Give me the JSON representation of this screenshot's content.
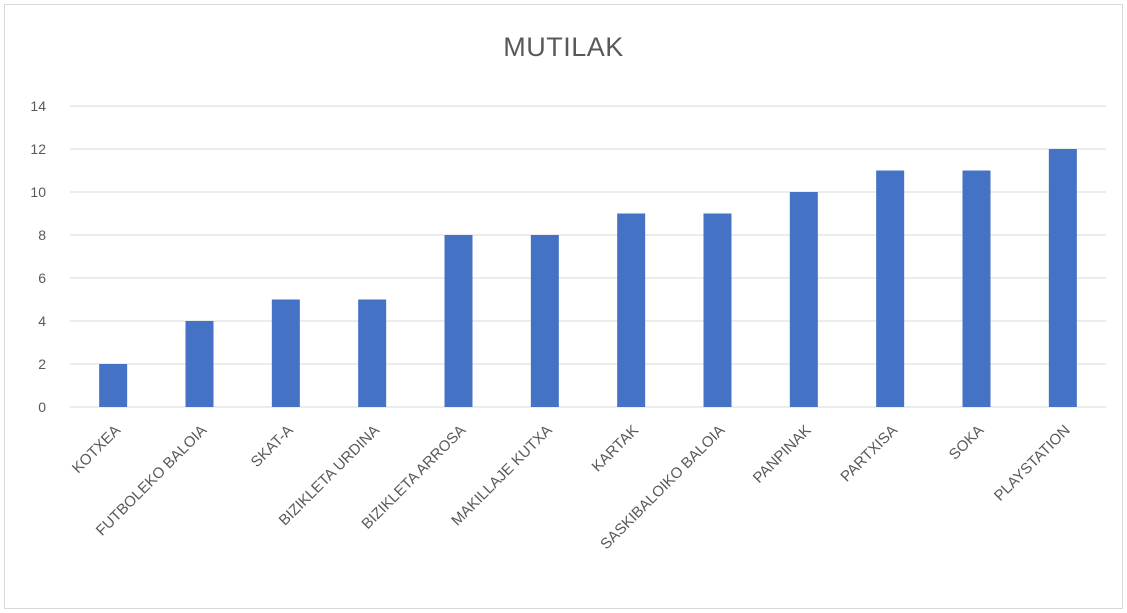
{
  "chart_data": {
    "type": "bar",
    "title": "MUTILAK",
    "categories": [
      "KOTXEA",
      "FUTBOLEKO BALOIA",
      "SKAT-A",
      "BIZIKLETA URDINA",
      "BIZIKLETA ARROSA",
      "MAKILLAJE KUTXA",
      "KARTAK",
      "SASKIBALOIKO BALOIA",
      "PANPINAK",
      "PARTXISA",
      "SOKA",
      "PLAYSTATION"
    ],
    "values": [
      2,
      4,
      5,
      5,
      8,
      8,
      9,
      9,
      10,
      11,
      11,
      12
    ],
    "ylim": [
      0,
      14
    ],
    "yticks": [
      0,
      2,
      4,
      6,
      8,
      10,
      12,
      14
    ],
    "grid": true,
    "legend": "none",
    "xlabel": "",
    "ylabel": "",
    "bar_color": "#4472c4",
    "grid_color": "#d9d9d9"
  }
}
